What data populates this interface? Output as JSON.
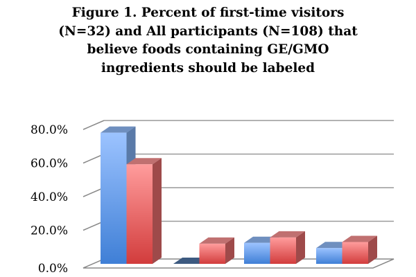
{
  "chart_data": {
    "type": "bar",
    "style": "3d-clustered-column",
    "title_lines": [
      "Figure 1. Percent of first-time visitors",
      "(N=32) and All participants (N=108) that",
      "believe foods containing GE/GMO",
      "ingredients should be labeled"
    ],
    "categories": [
      "",
      "",
      "",
      ""
    ],
    "series": [
      {
        "values": [
          78.1,
          0.0,
          12.5,
          9.4
        ],
        "color": "#6fa2ef"
      },
      {
        "values": [
          59.3,
          12.0,
          15.7,
          13.0
        ],
        "color": "#ef7676"
      }
    ],
    "ylim": [
      0,
      80
    ],
    "yticks": [
      "0.0%",
      "20.0%",
      "40.0%",
      "60.0%",
      "80.0%"
    ],
    "grid": true,
    "legend": "none"
  }
}
